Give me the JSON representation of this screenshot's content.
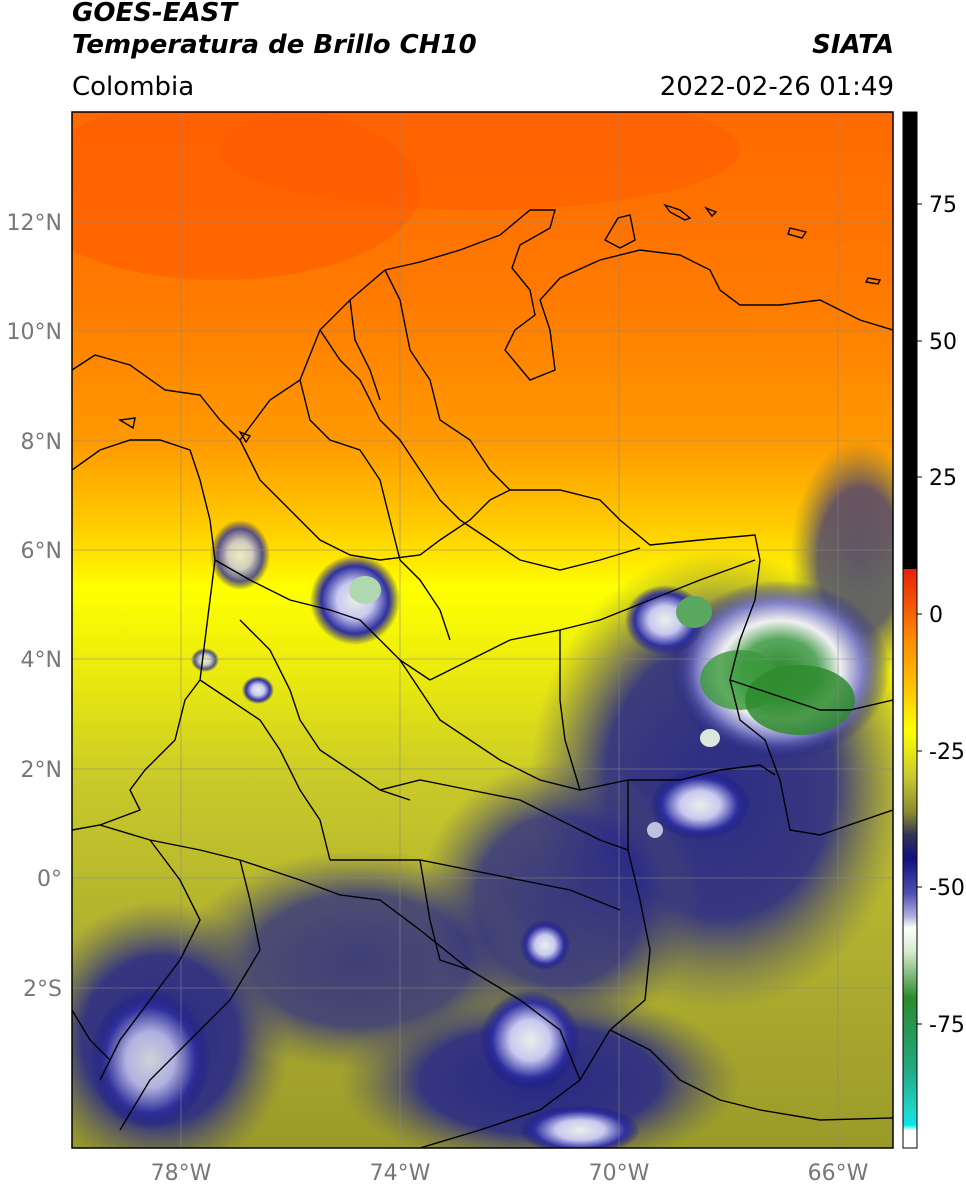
{
  "header": {
    "title_line1": "GOES-EAST",
    "title_line2": "Temperatura de Brillo CH10",
    "brand": "SIATA",
    "region": "Colombia",
    "timestamp": "2022-02-26 01:49"
  },
  "map": {
    "lon_labels": [
      "78°W",
      "74°W",
      "70°W",
      "66°W"
    ],
    "lat_labels": [
      "12°N",
      "10°N",
      "8°N",
      "6°N",
      "4°N",
      "2°N",
      "0°",
      "2°S"
    ],
    "lon_range": [
      -80,
      -65
    ],
    "lat_range": [
      -5,
      14
    ],
    "gridlines": true
  },
  "colorbar": {
    "tick_labels": [
      "75",
      "50",
      "25",
      "0",
      "-25",
      "-50",
      "-75"
    ],
    "range": [
      -100,
      90
    ],
    "colors": {
      "black": "#000000",
      "red": "#e8200a",
      "orange": "#ff8a00",
      "yellow": "#ffff00",
      "olive": "#9a9a2a",
      "navy": "#101080",
      "white": "#ffffff",
      "green": "#2e8b2e",
      "cyan": "#20d8d0"
    }
  }
}
